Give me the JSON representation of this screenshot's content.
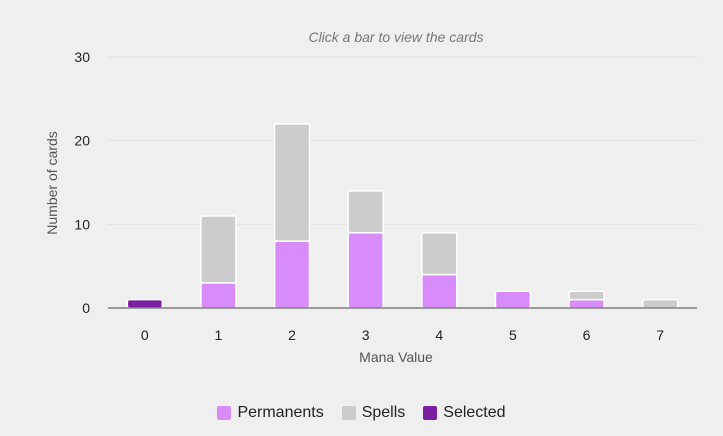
{
  "chart_data": {
    "type": "bar",
    "stacked": true,
    "subtitle": "Click a bar to view the cards",
    "xlabel": "Mana Value",
    "ylabel": "Number of cards",
    "categories": [
      "0",
      "1",
      "2",
      "3",
      "4",
      "5",
      "6",
      "7"
    ],
    "series": [
      {
        "name": "Selected",
        "color": "#7b1fa2",
        "values": [
          1,
          0,
          0,
          0,
          0,
          0,
          0,
          0
        ]
      },
      {
        "name": "Permanents",
        "color": "#d88cfa",
        "values": [
          0,
          3,
          8,
          9,
          4,
          2,
          1,
          0
        ]
      },
      {
        "name": "Spells",
        "color": "#cccccc",
        "values": [
          0,
          8,
          14,
          5,
          5,
          0,
          1,
          1
        ]
      }
    ],
    "ylim": [
      0,
      30
    ],
    "yticks": [
      0,
      10,
      20,
      30
    ],
    "grid": true,
    "legend_position": "bottom"
  },
  "legend": {
    "items": [
      {
        "label": "Permanents",
        "color": "#d88cfa"
      },
      {
        "label": "Spells",
        "color": "#cccccc"
      },
      {
        "label": "Selected",
        "color": "#7b1fa2"
      }
    ]
  }
}
